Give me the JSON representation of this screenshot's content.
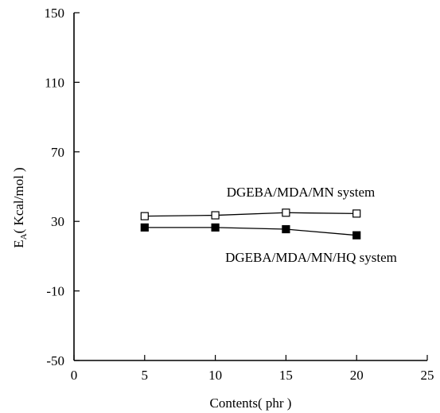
{
  "chart_data": {
    "type": "line",
    "xlabel": "Contents( phr )",
    "ylabel_main": "E",
    "ylabel_sub": "A",
    "ylabel_rest": "( Kcal/mol )",
    "xlim": [
      0,
      25
    ],
    "ylim": [
      -50,
      150
    ],
    "xticks": [
      0,
      5,
      10,
      15,
      20,
      25
    ],
    "yticks": [
      -50,
      -10,
      30,
      70,
      110,
      150
    ],
    "grid": false,
    "series": [
      {
        "name": "DGEBA/MDA/MN system",
        "marker": "open-square",
        "x": [
          5,
          10,
          15,
          20
        ],
        "y": [
          33,
          33.5,
          35,
          34.5
        ]
      },
      {
        "name": "DGEBA/MDA/MN/HQ system",
        "marker": "filled-square",
        "x": [
          5,
          10,
          15,
          20
        ],
        "y": [
          26.5,
          26.5,
          25.5,
          22
        ]
      }
    ]
  }
}
